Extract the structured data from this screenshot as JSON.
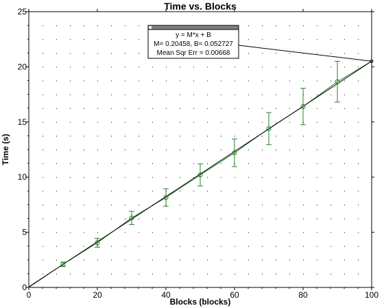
{
  "chart_data": {
    "type": "scatter",
    "title": "Time vs. Blocks",
    "xlabel": "Blocks (blocks)",
    "ylabel": "Time (s)",
    "xlim": [
      0,
      100
    ],
    "ylim": [
      0,
      25
    ],
    "xticks": [
      0,
      20,
      40,
      60,
      80,
      100
    ],
    "yticks": [
      0,
      5,
      10,
      15,
      20,
      25
    ],
    "grid": true,
    "series": [
      {
        "x": [
          10,
          20,
          30,
          40,
          50,
          60,
          70,
          80,
          90
        ],
        "y": [
          2.1,
          4.05,
          6.3,
          8.15,
          10.2,
          12.2,
          14.4,
          16.4,
          18.65
        ],
        "yerr": [
          0.2,
          0.4,
          0.6,
          0.8,
          1.0,
          1.25,
          1.45,
          1.65,
          1.85
        ]
      }
    ],
    "fit": {
      "equation": "y = M*x + B",
      "params": "M= 0.20458,  B= 0.052727",
      "error": "Mean Sqr Err = 0.00668",
      "M": 0.20458,
      "B": 0.052727
    },
    "colors": {
      "data": "#2a7d2a",
      "fit": "#000000",
      "grid": "#000000"
    }
  }
}
